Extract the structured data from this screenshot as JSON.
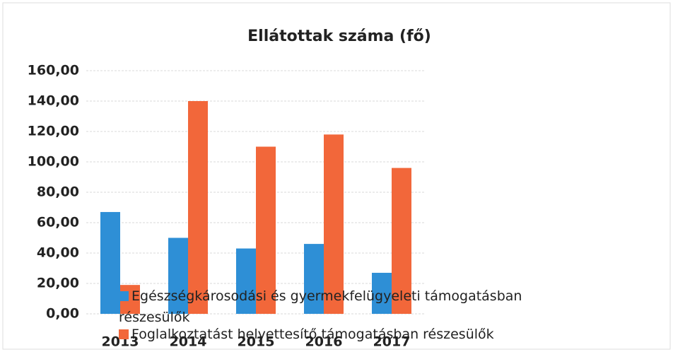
{
  "chart_data": {
    "type": "bar",
    "title": "Ellátottak száma (fő)",
    "categories": [
      "2013",
      "2014",
      "2015",
      "2016",
      "2017"
    ],
    "series": [
      {
        "name": "Egészségkárosodási és gyermekfelügyeleti támogatásban részesülők",
        "color": "#2e8fd6",
        "values": [
          67,
          50,
          43,
          46,
          27
        ]
      },
      {
        "name": "Foglalkoztatást helyettesítő támogatásban részesülők",
        "color": "#f2673a",
        "values": [
          19,
          140,
          110,
          118,
          96
        ]
      }
    ],
    "ylim": [
      0,
      160
    ],
    "yticks": [
      {
        "value": 0,
        "label": "0,00"
      },
      {
        "value": 20,
        "label": "20,00"
      },
      {
        "value": 40,
        "label": "40,00"
      },
      {
        "value": 60,
        "label": "60,00"
      },
      {
        "value": 80,
        "label": "80,00"
      },
      {
        "value": 100,
        "label": "100,00"
      },
      {
        "value": 120,
        "label": "120,00"
      },
      {
        "value": 140,
        "label": "140,00"
      },
      {
        "value": 160,
        "label": "160,00"
      }
    ],
    "grid": true
  }
}
